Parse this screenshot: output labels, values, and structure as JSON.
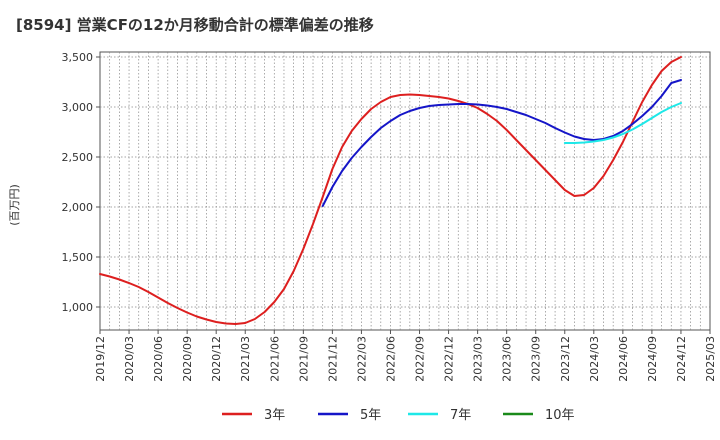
{
  "title": "[8594]  営業CFの12か月移動合計の標準偏差の推移",
  "chart_data": {
    "type": "line",
    "ylabel": "(百万円)",
    "ylim": [
      770,
      3550
    ],
    "yticks": [
      1000,
      1500,
      2000,
      2500,
      3000,
      3500
    ],
    "ytick_labels": [
      "1,000",
      "1,500",
      "2,000",
      "2,500",
      "3,000",
      "3,500"
    ],
    "xlim": [
      "2019-12",
      "2025-03"
    ],
    "xtick_labels": [
      "2019/12",
      "2020/03",
      "2020/06",
      "2020/09",
      "2020/12",
      "2021/03",
      "2021/06",
      "2021/09",
      "2021/12",
      "2022/03",
      "2022/06",
      "2022/09",
      "2022/12",
      "2023/03",
      "2023/06",
      "2023/09",
      "2023/12",
      "2024/03",
      "2024/06",
      "2024/09",
      "2024/12",
      "2025/03"
    ],
    "grid": true,
    "legend_position": "bottom",
    "series": [
      {
        "name": "3年",
        "color": "#dd1f1f",
        "points": [
          [
            "2019-12",
            1330
          ],
          [
            "2020-01",
            1305
          ],
          [
            "2020-02",
            1275
          ],
          [
            "2020-03",
            1240
          ],
          [
            "2020-04",
            1200
          ],
          [
            "2020-05",
            1150
          ],
          [
            "2020-06",
            1095
          ],
          [
            "2020-07",
            1040
          ],
          [
            "2020-08",
            990
          ],
          [
            "2020-09",
            945
          ],
          [
            "2020-10",
            905
          ],
          [
            "2020-11",
            875
          ],
          [
            "2020-12",
            850
          ],
          [
            "2021-01",
            835
          ],
          [
            "2021-02",
            830
          ],
          [
            "2021-03",
            840
          ],
          [
            "2021-04",
            880
          ],
          [
            "2021-05",
            950
          ],
          [
            "2021-06",
            1050
          ],
          [
            "2021-07",
            1180
          ],
          [
            "2021-08",
            1360
          ],
          [
            "2021-09",
            1580
          ],
          [
            "2021-10",
            1830
          ],
          [
            "2021-11",
            2100
          ],
          [
            "2021-12",
            2380
          ],
          [
            "2022-01",
            2600
          ],
          [
            "2022-02",
            2760
          ],
          [
            "2022-03",
            2880
          ],
          [
            "2022-04",
            2980
          ],
          [
            "2022-05",
            3050
          ],
          [
            "2022-06",
            3100
          ],
          [
            "2022-07",
            3120
          ],
          [
            "2022-08",
            3125
          ],
          [
            "2022-09",
            3120
          ],
          [
            "2022-10",
            3110
          ],
          [
            "2022-11",
            3100
          ],
          [
            "2022-12",
            3085
          ],
          [
            "2023-01",
            3060
          ],
          [
            "2023-02",
            3030
          ],
          [
            "2023-03",
            2990
          ],
          [
            "2023-04",
            2930
          ],
          [
            "2023-05",
            2860
          ],
          [
            "2023-06",
            2770
          ],
          [
            "2023-07",
            2670
          ],
          [
            "2023-08",
            2570
          ],
          [
            "2023-09",
            2470
          ],
          [
            "2023-10",
            2370
          ],
          [
            "2023-11",
            2270
          ],
          [
            "2023-12",
            2170
          ],
          [
            "2024-01",
            2110
          ],
          [
            "2024-02",
            2120
          ],
          [
            "2024-03",
            2190
          ],
          [
            "2024-04",
            2310
          ],
          [
            "2024-05",
            2470
          ],
          [
            "2024-06",
            2650
          ],
          [
            "2024-07",
            2850
          ],
          [
            "2024-08",
            3050
          ],
          [
            "2024-09",
            3220
          ],
          [
            "2024-10",
            3360
          ],
          [
            "2024-11",
            3450
          ],
          [
            "2024-12",
            3500
          ]
        ]
      },
      {
        "name": "5年",
        "color": "#1515c8",
        "points": [
          [
            "2021-11",
            2010
          ],
          [
            "2021-12",
            2200
          ],
          [
            "2022-01",
            2360
          ],
          [
            "2022-02",
            2490
          ],
          [
            "2022-03",
            2600
          ],
          [
            "2022-04",
            2700
          ],
          [
            "2022-05",
            2790
          ],
          [
            "2022-06",
            2860
          ],
          [
            "2022-07",
            2920
          ],
          [
            "2022-08",
            2960
          ],
          [
            "2022-09",
            2990
          ],
          [
            "2022-10",
            3010
          ],
          [
            "2022-11",
            3020
          ],
          [
            "2022-12",
            3025
          ],
          [
            "2023-01",
            3030
          ],
          [
            "2023-02",
            3030
          ],
          [
            "2023-03",
            3025
          ],
          [
            "2023-04",
            3015
          ],
          [
            "2023-05",
            3000
          ],
          [
            "2023-06",
            2980
          ],
          [
            "2023-07",
            2950
          ],
          [
            "2023-08",
            2920
          ],
          [
            "2023-09",
            2880
          ],
          [
            "2023-10",
            2840
          ],
          [
            "2023-11",
            2790
          ],
          [
            "2023-12",
            2745
          ],
          [
            "2024-01",
            2705
          ],
          [
            "2024-02",
            2680
          ],
          [
            "2024-03",
            2670
          ],
          [
            "2024-04",
            2680
          ],
          [
            "2024-05",
            2710
          ],
          [
            "2024-06",
            2760
          ],
          [
            "2024-07",
            2830
          ],
          [
            "2024-08",
            2910
          ],
          [
            "2024-09",
            3000
          ],
          [
            "2024-10",
            3110
          ],
          [
            "2024-11",
            3240
          ],
          [
            "2024-12",
            3270
          ]
        ]
      },
      {
        "name": "7年",
        "color": "#1ee8e8",
        "points": [
          [
            "2023-12",
            2640
          ],
          [
            "2024-01",
            2640
          ],
          [
            "2024-02",
            2645
          ],
          [
            "2024-03",
            2655
          ],
          [
            "2024-04",
            2670
          ],
          [
            "2024-05",
            2695
          ],
          [
            "2024-06",
            2730
          ],
          [
            "2024-07",
            2775
          ],
          [
            "2024-08",
            2830
          ],
          [
            "2024-09",
            2890
          ],
          [
            "2024-10",
            2950
          ],
          [
            "2024-11",
            3000
          ],
          [
            "2024-12",
            3040
          ]
        ]
      },
      {
        "name": "10年",
        "color": "#1a8a1a",
        "points": []
      }
    ]
  }
}
